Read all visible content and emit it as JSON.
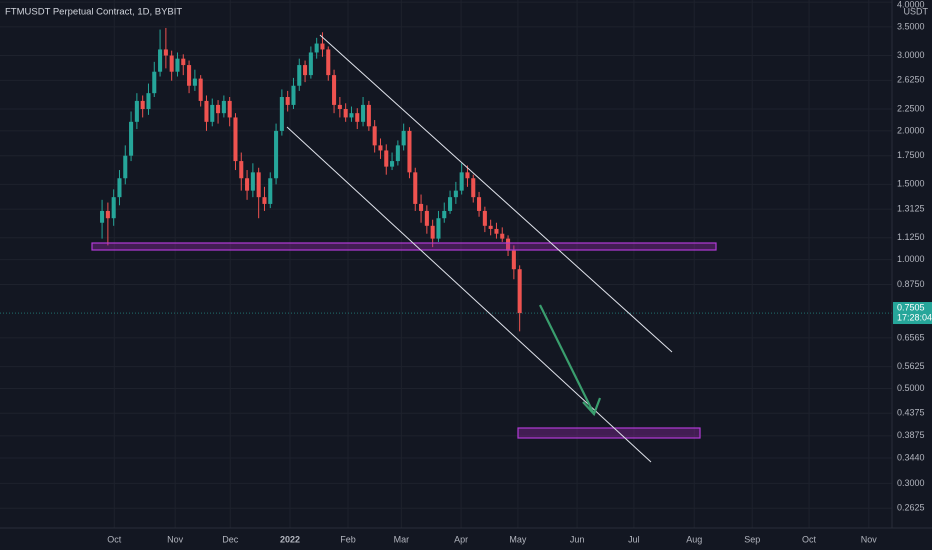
{
  "chart_data": {
    "type": "candlestick",
    "title": "FTMUSDT Perpetual Contract, 1D, BYBIT",
    "y_unit": "USDT",
    "log_scale": true,
    "grid": true,
    "up_color": "#26a69a",
    "down_color": "#ef5350",
    "categories": [
      null,
      null,
      null,
      null,
      null,
      null,
      null,
      null,
      null,
      null,
      null,
      null,
      null,
      null,
      null,
      null,
      null,
      null,
      null,
      null,
      null,
      null,
      null,
      null,
      null,
      null,
      null,
      null,
      null,
      null,
      null,
      null,
      null,
      null,
      null,
      null,
      null,
      null,
      null,
      null,
      null,
      null,
      null,
      null,
      null,
      null,
      null,
      null,
      null,
      null,
      null,
      null,
      null,
      null,
      null,
      null,
      null,
      null,
      null,
      null,
      null,
      null,
      null,
      null,
      null,
      null,
      null,
      null,
      null,
      null,
      null,
      null,
      null
    ],
    "open": [
      1.22,
      1.3,
      1.25,
      1.4,
      1.55,
      1.75,
      2.1,
      2.35,
      2.25,
      2.45,
      2.75,
      3.1,
      3.0,
      2.75,
      2.95,
      2.85,
      2.55,
      2.65,
      2.35,
      2.1,
      2.3,
      2.2,
      2.35,
      2.15,
      1.7,
      1.55,
      1.45,
      1.6,
      1.4,
      1.35,
      1.55,
      2.0,
      2.4,
      2.3,
      2.55,
      2.85,
      2.7,
      3.05,
      3.2,
      3.1,
      2.7,
      2.3,
      2.25,
      2.15,
      2.2,
      2.1,
      2.3,
      2.05,
      1.85,
      1.8,
      1.65,
      1.7,
      1.85,
      2.0,
      1.6,
      1.35,
      1.3,
      1.2,
      1.12,
      1.25,
      1.3,
      1.4,
      1.45,
      1.6,
      1.55,
      1.4,
      1.3,
      1.2,
      1.18,
      1.15,
      1.12,
      1.05,
      0.95
    ],
    "high": [
      1.38,
      1.36,
      1.46,
      1.62,
      1.85,
      2.22,
      2.45,
      2.42,
      2.58,
      2.9,
      3.45,
      3.48,
      3.08,
      3.05,
      3.02,
      2.92,
      2.78,
      2.7,
      2.42,
      2.38,
      2.36,
      2.42,
      2.4,
      2.2,
      1.78,
      1.62,
      1.68,
      1.64,
      1.48,
      1.6,
      2.08,
      2.5,
      2.48,
      2.66,
      2.95,
      2.92,
      3.15,
      3.3,
      3.4,
      3.15,
      2.78,
      2.4,
      2.32,
      2.28,
      2.26,
      2.4,
      2.35,
      2.12,
      1.92,
      1.86,
      1.78,
      1.9,
      2.08,
      2.04,
      1.64,
      1.42,
      1.34,
      1.24,
      1.3,
      1.36,
      1.45,
      1.52,
      1.68,
      1.66,
      1.58,
      1.44,
      1.33,
      1.24,
      1.22,
      1.19,
      1.14,
      1.08,
      0.97
    ],
    "low": [
      1.12,
      1.08,
      1.2,
      1.34,
      1.5,
      1.7,
      2.02,
      2.15,
      2.18,
      2.4,
      2.68,
      2.8,
      2.62,
      2.68,
      2.7,
      2.45,
      2.48,
      2.28,
      2.0,
      2.05,
      2.08,
      2.15,
      2.05,
      1.62,
      1.45,
      1.38,
      1.4,
      1.25,
      1.3,
      1.32,
      1.5,
      1.95,
      2.22,
      2.25,
      2.48,
      2.6,
      2.65,
      2.95,
      2.98,
      2.62,
      2.2,
      2.15,
      2.1,
      2.1,
      2.02,
      2.05,
      2.0,
      1.78,
      1.72,
      1.58,
      1.62,
      1.66,
      1.8,
      1.55,
      1.3,
      1.22,
      1.15,
      1.07,
      1.1,
      1.22,
      1.28,
      1.35,
      1.42,
      1.48,
      1.36,
      1.26,
      1.16,
      1.14,
      1.12,
      1.1,
      1.02,
      0.9,
      0.68
    ],
    "close": [
      1.3,
      1.25,
      1.4,
      1.55,
      1.75,
      2.1,
      2.35,
      2.25,
      2.45,
      2.75,
      3.1,
      3.0,
      2.75,
      2.95,
      2.85,
      2.55,
      2.65,
      2.35,
      2.1,
      2.3,
      2.2,
      2.35,
      2.15,
      1.7,
      1.55,
      1.45,
      1.6,
      1.4,
      1.35,
      1.55,
      2.0,
      2.4,
      2.3,
      2.55,
      2.85,
      2.7,
      3.05,
      3.2,
      3.1,
      2.7,
      2.3,
      2.25,
      2.15,
      2.2,
      2.1,
      2.3,
      2.05,
      1.85,
      1.8,
      1.65,
      1.7,
      1.85,
      2.0,
      1.6,
      1.35,
      1.3,
      1.2,
      1.12,
      1.25,
      1.3,
      1.4,
      1.45,
      1.6,
      1.55,
      1.4,
      1.3,
      1.2,
      1.18,
      1.15,
      1.12,
      1.05,
      0.95,
      0.75
    ],
    "xlim": [
      -17.6,
      136.2
    ],
    "xticks": [
      {
        "value": 2.1,
        "label": "Oct"
      },
      {
        "value": 12.6,
        "label": "Nov"
      },
      {
        "value": 22.1,
        "label": "Dec"
      },
      {
        "value": 32.4,
        "label": "2022"
      },
      {
        "value": 42.4,
        "label": "Feb"
      },
      {
        "value": 51.6,
        "label": "Mar"
      },
      {
        "value": 61.9,
        "label": "Apr"
      },
      {
        "value": 71.7,
        "label": "May"
      },
      {
        "value": 81.9,
        "label": "Jun"
      },
      {
        "value": 91.7,
        "label": "Jul"
      },
      {
        "value": 102.1,
        "label": "Aug"
      },
      {
        "value": 112.1,
        "label": "Sep"
      },
      {
        "value": 121.9,
        "label": "Oct"
      },
      {
        "value": 132.2,
        "label": "Nov"
      }
    ],
    "ylim": [
      0.236,
      4.045
    ],
    "yticks": [
      {
        "value": 4,
        "label": "4.0000"
      },
      {
        "value": 3.5,
        "label": "3.5000"
      },
      {
        "value": 3,
        "label": "3.0000"
      },
      {
        "value": 2.625,
        "label": "2.6250"
      },
      {
        "value": 2.25,
        "label": "2.2500"
      },
      {
        "value": 2,
        "label": "2.0000"
      },
      {
        "value": 1.75,
        "label": "1.7500"
      },
      {
        "value": 1.5,
        "label": "1.5000"
      },
      {
        "value": 1.3125,
        "label": "1.3125"
      },
      {
        "value": 1.125,
        "label": "1.1250"
      },
      {
        "value": 1,
        "label": "1.0000"
      },
      {
        "value": 0.875,
        "label": "0.8750"
      },
      {
        "value": 0.6565,
        "label": "0.6565"
      },
      {
        "value": 0.5625,
        "label": "0.5625"
      },
      {
        "value": 0.5,
        "label": "0.5000"
      },
      {
        "value": 0.4375,
        "label": "0.4375"
      },
      {
        "value": 0.3875,
        "label": "0.3875"
      },
      {
        "value": 0.344,
        "label": "0.3440"
      },
      {
        "value": 0.3,
        "label": "0.3000"
      },
      {
        "value": 0.2625,
        "label": "0.2625"
      }
    ],
    "last_price": {
      "value": 0.7505,
      "label": "0.7505"
    },
    "countdown": "17:28:04"
  }
}
